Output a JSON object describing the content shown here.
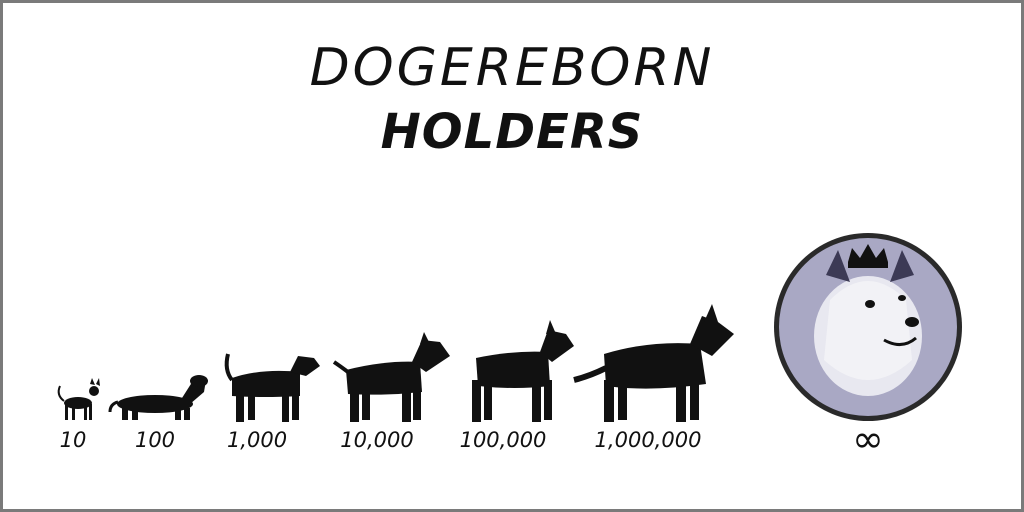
{
  "header": {
    "line1": "DOGEREBORN",
    "line2": "HOLDERS"
  },
  "tiers": [
    {
      "label": "10"
    },
    {
      "label": "100"
    },
    {
      "label": "1,000"
    },
    {
      "label": "10,000"
    },
    {
      "label": "100,000"
    },
    {
      "label": "1,000,000"
    }
  ],
  "final_tier": {
    "label": "∞"
  },
  "colors": {
    "silhouette": "#111111",
    "coin_fill": "#a9a8c4",
    "coin_rim": "#2a2a2a"
  }
}
